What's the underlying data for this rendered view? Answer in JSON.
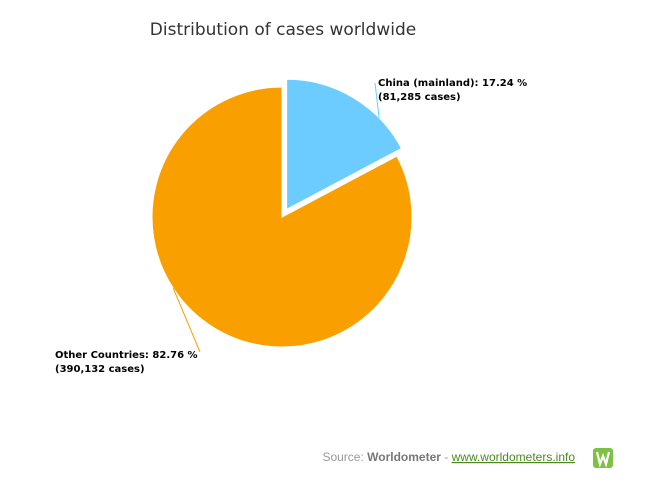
{
  "chart_data": {
    "type": "pie",
    "title": "Distribution of cases worldwide",
    "categories": [
      "China (mainland)",
      "Other Countries"
    ],
    "values": [
      17.24,
      82.76
    ],
    "value_labels": [
      "China (mainland): 17.24 %",
      "Other Countries: 82.76 %"
    ],
    "cases": [
      81285,
      390132
    ],
    "cases_labels": [
      "(81,285 cases)",
      "(390,132 cases)"
    ],
    "colors": [
      "#6ccbff",
      "#f9a000"
    ],
    "source": {
      "prefix": "Source:",
      "name": "Worldometer",
      "separator": "-",
      "url": "www.worldometers.info"
    }
  }
}
